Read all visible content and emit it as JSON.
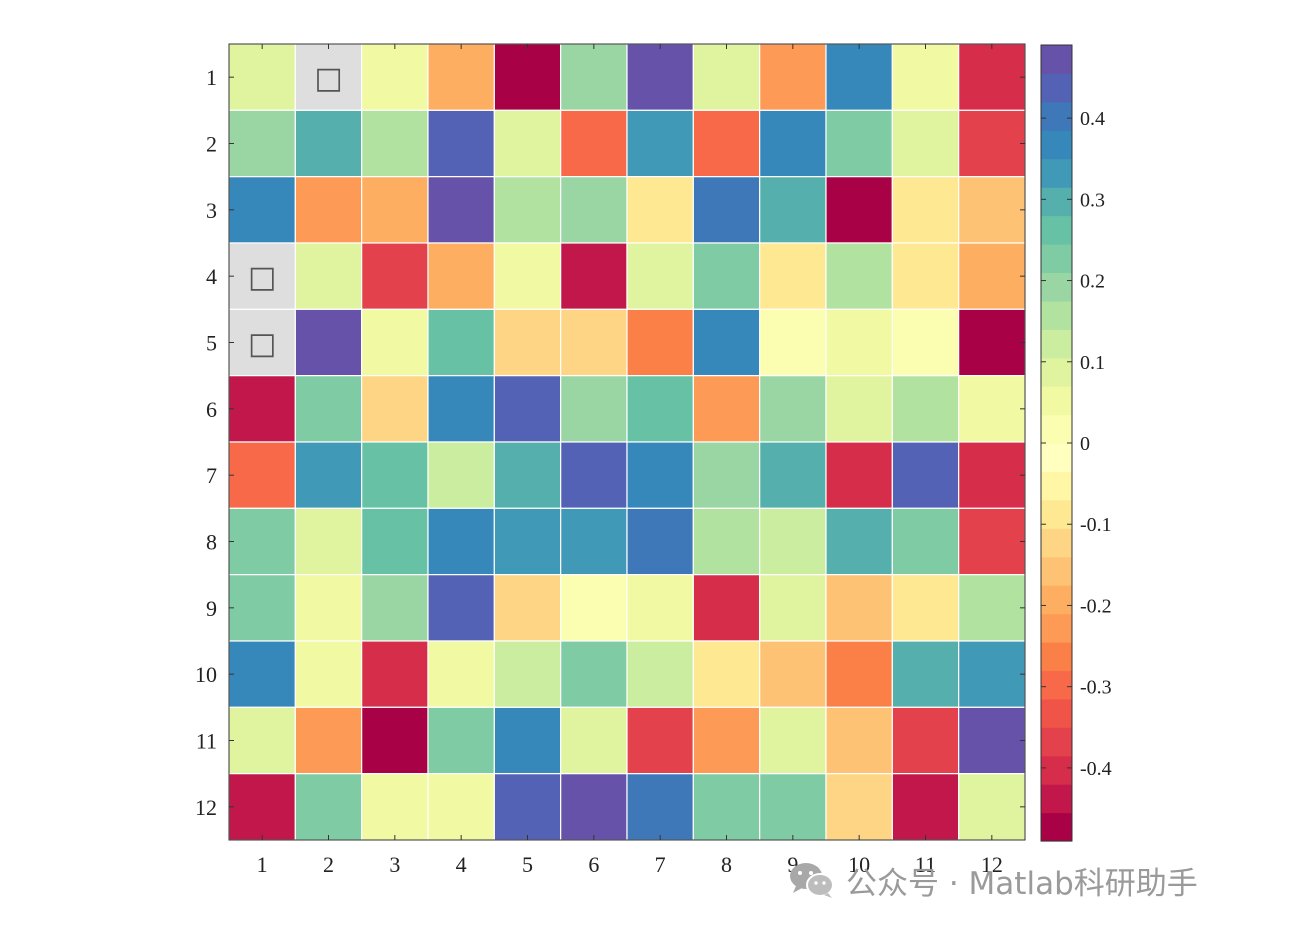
{
  "chart_data": {
    "type": "heatmap",
    "title": "",
    "xlabel": "",
    "ylabel": "",
    "x_categories": [
      "1",
      "2",
      "3",
      "4",
      "5",
      "6",
      "7",
      "8",
      "9",
      "10",
      "11",
      "12"
    ],
    "y_categories": [
      "1",
      "2",
      "3",
      "4",
      "5",
      "6",
      "7",
      "8",
      "9",
      "10",
      "11",
      "12"
    ],
    "values": [
      [
        0.08,
        null,
        0.04,
        -0.2,
        -0.49,
        0.18,
        0.47,
        0.08,
        -0.22,
        0.38,
        0.06,
        -0.41
      ],
      [
        0.2,
        0.28,
        0.15,
        0.43,
        0.08,
        -0.3,
        0.34,
        -0.3,
        0.38,
        0.21,
        0.08,
        -0.38
      ],
      [
        0.38,
        -0.22,
        -0.19,
        0.47,
        0.15,
        0.18,
        -0.1,
        0.41,
        0.31,
        -0.49,
        -0.1,
        -0.16
      ],
      [
        null,
        0.07,
        -0.38,
        -0.2,
        0.04,
        -0.45,
        0.08,
        0.24,
        -0.1,
        0.17,
        -0.1,
        -0.19
      ],
      [
        null,
        0.47,
        0.05,
        0.27,
        -0.13,
        -0.11,
        -0.26,
        0.38,
        0.03,
        0.06,
        0.03,
        -0.49
      ],
      [
        -0.45,
        0.21,
        -0.13,
        0.38,
        0.44,
        0.18,
        0.27,
        -0.22,
        0.19,
        0.07,
        0.17,
        0.06
      ],
      [
        -0.3,
        0.34,
        0.27,
        0.11,
        0.31,
        0.44,
        0.38,
        0.18,
        0.31,
        -0.4,
        0.44,
        -0.41
      ],
      [
        0.22,
        0.09,
        0.27,
        0.38,
        0.34,
        0.32,
        0.41,
        0.17,
        0.12,
        0.31,
        0.21,
        -0.38
      ],
      [
        0.22,
        0.04,
        0.18,
        0.44,
        -0.13,
        0.03,
        0.04,
        -0.4,
        0.08,
        -0.16,
        -0.1,
        0.15
      ],
      [
        0.38,
        0.06,
        -0.4,
        0.06,
        0.12,
        0.23,
        0.12,
        -0.1,
        -0.16,
        -0.26,
        0.31,
        0.34
      ],
      [
        0.08,
        -0.22,
        -0.49,
        0.21,
        0.38,
        0.08,
        -0.38,
        -0.22,
        0.08,
        -0.16,
        -0.38,
        0.47
      ],
      [
        -0.45,
        0.24,
        0.05,
        0.06,
        0.44,
        0.47,
        0.41,
        0.21,
        0.21,
        -0.13,
        -0.45,
        0.07
      ]
    ],
    "missing_marker": "□",
    "missing_color": "#dedede",
    "grid_line_color": "#ffffff",
    "colormap": "Spectral",
    "colormap_levels": 24,
    "colorbar": {
      "range": [
        -0.49,
        0.49
      ],
      "ticks": [
        -0.4,
        -0.3,
        -0.2,
        -0.1,
        0,
        0.1,
        0.2,
        0.3,
        0.4
      ],
      "tick_labels": [
        "-0.4",
        "-0.3",
        "-0.2",
        "-0.1",
        "0",
        "0.1",
        "0.2",
        "0.3",
        "0.4"
      ],
      "placement": "right"
    },
    "colors": [
      "#a80145",
      "#c2174a",
      "#d52d4a",
      "#e3414b",
      "#f05347",
      "#f8694a",
      "#fb8047",
      "#fd9a56",
      "#feae61",
      "#fec274",
      "#fed584",
      "#fee891",
      "#fff6a6",
      "#ffffc0",
      "#fbfdb1",
      "#f1f9a2",
      "#e0f4a0",
      "#caed9f",
      "#b1e2a0",
      "#99d6a3",
      "#7fcba4",
      "#67c2a5",
      "#55b0ad",
      "#4199b8",
      "#3688bb",
      "#3f78b8",
      "#5362b4",
      "#6752a9"
    ]
  },
  "watermark": {
    "text": "公众号 · Matlab科研助手",
    "icon": "wechat-icon"
  }
}
